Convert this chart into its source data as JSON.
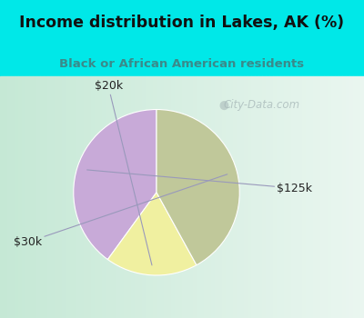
{
  "title": "Income distribution in Lakes, AK (%)",
  "subtitle": "Black or African American residents",
  "slices": [
    {
      "label": "$125k",
      "value": 40,
      "color": "#c8aad8"
    },
    {
      "label": "$20k",
      "value": 18,
      "color": "#f0f0a0"
    },
    {
      "label": "$30k",
      "value": 42,
      "color": "#c0c89a"
    }
  ],
  "startangle": 90,
  "title_color": "#111111",
  "subtitle_color": "#3a8a8a",
  "bg_color": "#00e8e8",
  "chart_bg_left": "#c8e8d8",
  "chart_bg_right": "#e8f4f0",
  "watermark": "City-Data.com",
  "watermark_color": "#aabbbb"
}
